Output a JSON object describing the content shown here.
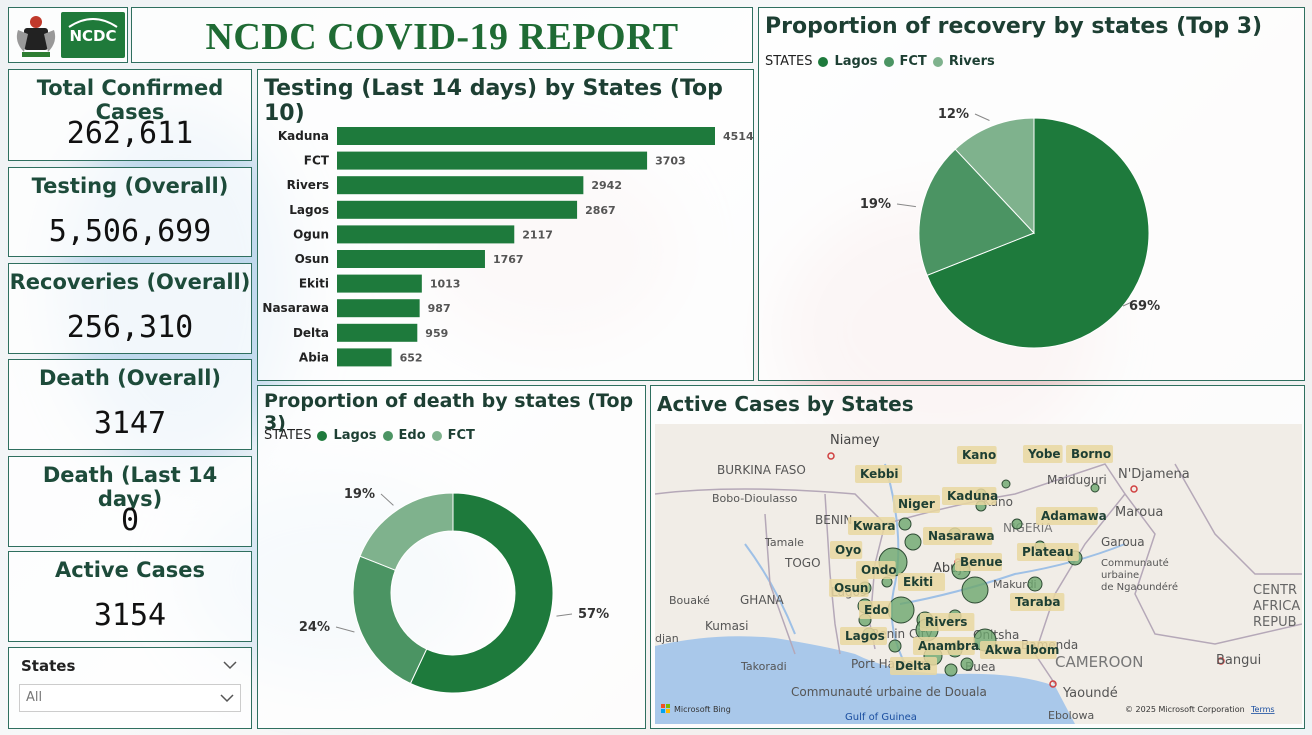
{
  "header": {
    "title": "NCDC COVID-19 REPORT",
    "logo_text": "NCDC"
  },
  "cards": [
    {
      "label": "Total Confirmed Cases",
      "value": "262,611"
    },
    {
      "label": "Testing (Overall)",
      "value": "5,506,699"
    },
    {
      "label": "Recoveries (Overall)",
      "value": "256,310"
    },
    {
      "label": "Death (Overall)",
      "value": "3147"
    },
    {
      "label": "Death (Last 14 days)",
      "value": "0"
    },
    {
      "label": "Active Cases",
      "value": "3154"
    }
  ],
  "filter": {
    "label": "States",
    "value": "All"
  },
  "colors": {
    "dark_green": "#1e7a3c",
    "mid_green": "#4b9463",
    "light_green": "#7fb28d",
    "title_green": "#1f6b34"
  },
  "chart_data": [
    {
      "type": "bar",
      "title": "Testing (Last 14 days) by States (Top 10)",
      "categories": [
        "Kaduna",
        "FCT",
        "Rivers",
        "Lagos",
        "Ogun",
        "Osun",
        "Ekiti",
        "Nasarawa",
        "Delta",
        "Abia"
      ],
      "values": [
        4514,
        3703,
        2942,
        2867,
        2117,
        1767,
        1013,
        987,
        959,
        652
      ],
      "orientation": "horizontal",
      "data_labels": true
    },
    {
      "type": "pie",
      "title": "Proportion of recovery by states (Top 3)",
      "legend_title": "STATES",
      "legend_position": "top-left",
      "categories": [
        "Lagos",
        "FCT",
        "Rivers"
      ],
      "values": [
        69,
        19,
        12
      ],
      "labels": [
        "69%",
        "19%",
        "12%"
      ]
    },
    {
      "type": "pie",
      "variant": "donut",
      "title": "Proportion of death by states (Top 3)",
      "legend_title": "STATES",
      "legend_position": "top-left",
      "categories": [
        "Lagos",
        "Edo",
        "FCT"
      ],
      "values": [
        57,
        24,
        19
      ],
      "labels": [
        "57%",
        "24%",
        "19%"
      ]
    }
  ],
  "map": {
    "title": "Active Cases by States",
    "state_labels": [
      "Kano",
      "Yobe",
      "Borno",
      "Kebbi",
      "Kaduna",
      "Niger",
      "Adamawa",
      "Kwara",
      "Nasarawa",
      "Plateau",
      "Oyo",
      "Benue",
      "Ondo",
      "Ekiti",
      "Osun",
      "Edo",
      "Taraba",
      "Lagos",
      "Rivers",
      "Anambra",
      "Akwa Ibom",
      "Delta"
    ],
    "place_labels": [
      "Niamey",
      "BURKINA FASO",
      "Bobo-Dioulasso",
      "BENIN",
      "Tamale",
      "TOGO",
      "GHANA",
      "Bouaké",
      "Kumasi",
      "djan",
      "Takoradi",
      "N'Djamena",
      "Maiduguri",
      "Maroua",
      "Garoua",
      "Communauté urbaine de Ngaoundéré",
      "CENTR AFRICA REPUB",
      "Bangui",
      "Yaoundé",
      "Ebolowa",
      "Bamenda",
      "CAMEROON",
      "Port Harcourt",
      "Communauté urbaine de Douala",
      "Gulf of Guinea",
      "Abuja",
      "Lagos",
      "Benin City",
      "Buea",
      "Makurdi",
      "Kano",
      "NIGERIA",
      "Onitsha"
    ],
    "attribution": "© 2025 Microsoft Corporation",
    "terms": "Terms",
    "provider": "Microsoft Bing"
  }
}
